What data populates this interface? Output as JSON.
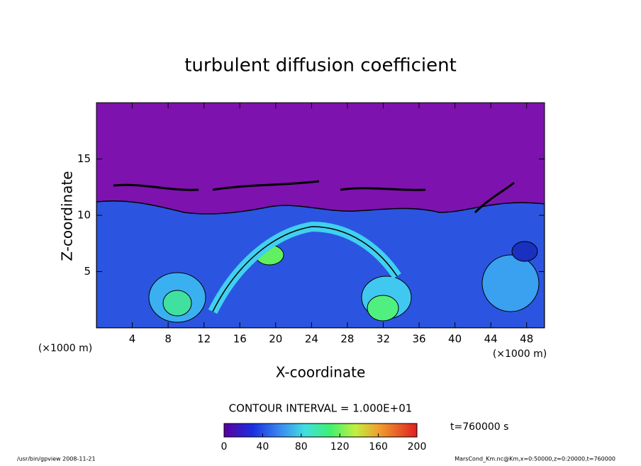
{
  "chart_data": {
    "type": "contour",
    "title": "turbulent diffusion coefficient",
    "x_label": "X-coordinate",
    "y_label": "Z-coordinate",
    "x_unit": "(×1000 m)",
    "y_unit": "(×1000 m)",
    "xlim": [
      0,
      50
    ],
    "xticks": [
      4,
      8,
      12,
      16,
      20,
      24,
      28,
      32,
      36,
      40,
      44,
      48
    ],
    "ylim": [
      0,
      20
    ],
    "yticks": [
      5,
      10,
      15
    ],
    "contour_interval": "CONTOUR INTERVAL = 1.000E+01",
    "time_label": "t=760000 s",
    "colorbar": {
      "lim": [
        0,
        200
      ],
      "ticks": [
        0,
        40,
        80,
        120,
        160,
        200
      ]
    },
    "footer_left": "/usr/bin/gpview  2008-11-21",
    "footer_right": "MarsCond_Km.nc@Km,x=0:50000,z=0:20000,t=760000"
  }
}
